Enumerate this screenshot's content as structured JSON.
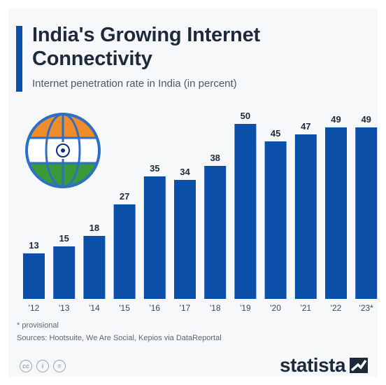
{
  "header": {
    "title": "India's Growing Internet Connectivity",
    "subtitle": "Internet penetration rate in India (in percent)"
  },
  "footer": {
    "note": "* provisional",
    "source": "Sources: Hootsuite, We Are Social, Kepios via DataReportal",
    "brand": "statista",
    "license_icons": [
      "creative-commons-icon",
      "attribution-icon",
      "no-derivatives-icon"
    ]
  },
  "colors": {
    "bar": "#0b4fa8",
    "accent": "#0b4fa8",
    "flag_saffron": "#f08c2a",
    "flag_green": "#3a9a3a",
    "globe_ring": "#2c6fc4"
  },
  "chart_data": {
    "type": "bar",
    "title": "India's Growing Internet Connectivity",
    "subtitle": "Internet penetration rate in India (in percent)",
    "categories": [
      "'12",
      "'13",
      "'14",
      "'15",
      "'16",
      "'17",
      "'18",
      "'19",
      "'20",
      "'21",
      "'22",
      "'23*"
    ],
    "values": [
      13,
      15,
      18,
      27,
      35,
      34,
      38,
      50,
      45,
      47,
      49,
      49
    ],
    "value_labels": [
      "13",
      "15",
      "18",
      "27",
      "35",
      "34",
      "38",
      "50",
      "45",
      "47",
      "49",
      "49"
    ],
    "xlabel": "",
    "ylabel": "",
    "ylim": [
      0,
      50
    ],
    "grid": false,
    "legend": "none"
  }
}
